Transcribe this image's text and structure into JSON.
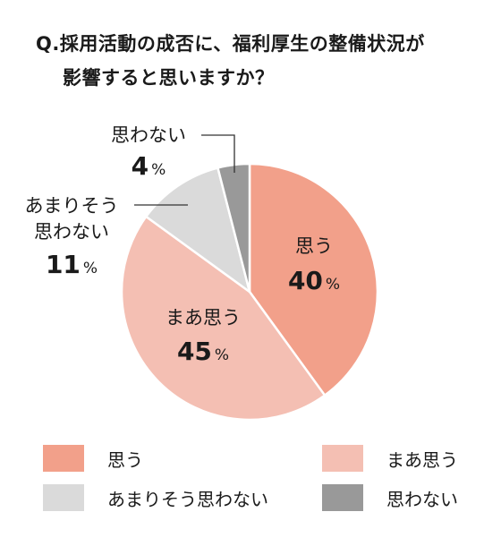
{
  "title": {
    "line1": "Q.採用活動の成否に、福利厚生の整備状況が",
    "line2": "影響すると思いますか？"
  },
  "chart_data": {
    "type": "pie",
    "slices": [
      {
        "label": "思う",
        "value": 40,
        "color": "#f2a08a"
      },
      {
        "label": "まあ思う",
        "value": 45,
        "color": "#f4bfb3"
      },
      {
        "label": "あまりそう思わない",
        "value": 11,
        "color": "#dadada"
      },
      {
        "label": "思わない",
        "value": 4,
        "color": "#999999"
      }
    ],
    "percent_sign": "%",
    "slice_labels": [
      {
        "lines": [
          "思う"
        ],
        "value": "40"
      },
      {
        "lines": [
          "まあ思う"
        ],
        "value": "45"
      },
      {
        "lines": [
          "あまりそう",
          "思わない"
        ],
        "value": "11"
      },
      {
        "lines": [
          "思わない"
        ],
        "value": "4"
      }
    ],
    "legend": [
      {
        "label": "思う",
        "color": "#f2a08a"
      },
      {
        "label": "まあ思う",
        "color": "#f4bfb3"
      },
      {
        "label": "あまりそう思わない",
        "color": "#dadada"
      },
      {
        "label": "思わない",
        "color": "#999999"
      }
    ]
  }
}
